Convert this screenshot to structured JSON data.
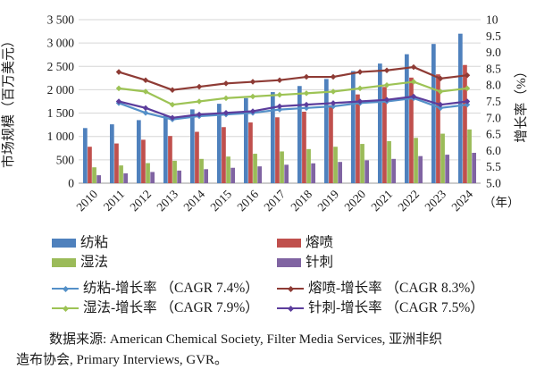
{
  "chart_data": {
    "type": "bar+line",
    "categories": [
      "2010",
      "2011",
      "2012",
      "2013",
      "2014",
      "2015",
      "2016",
      "2017",
      "2018",
      "2019",
      "2020",
      "2021",
      "2022",
      "2023",
      "2024"
    ],
    "x_axis_unit": "（年）",
    "left_axis": {
      "label": "市场规模（百万美元）",
      "min": 0,
      "max": 3500,
      "step": 500,
      "ticks": [
        "3 500",
        "3 000",
        "2 500",
        "2 000",
        "1 500",
        "1 000",
        "500",
        "0"
      ]
    },
    "right_axis": {
      "label": "增长率（%）",
      "min": 5.0,
      "max": 10.0,
      "step": 0.5,
      "ticks": [
        "10",
        "9.5",
        "9.0",
        "8.5",
        "8.0",
        "7.5",
        "7.0",
        "6.5",
        "6.0",
        "5.5",
        "5.0"
      ]
    },
    "grid": true,
    "legend_position": "bottom",
    "bar_series": [
      {
        "name": "纺粘",
        "color": "#4F81BD",
        "values": [
          1180,
          1260,
          1350,
          1450,
          1580,
          1700,
          1820,
          1950,
          2080,
          2230,
          2400,
          2560,
          2760,
          2980,
          3200
        ]
      },
      {
        "name": "熔喷",
        "color": "#C0504D",
        "values": [
          780,
          850,
          930,
          1010,
          1100,
          1200,
          1300,
          1410,
          1530,
          1670,
          1900,
          2060,
          2260,
          2330,
          2530
        ]
      },
      {
        "name": "湿法",
        "color": "#9BBB59",
        "values": [
          340,
          380,
          430,
          480,
          520,
          570,
          630,
          680,
          730,
          780,
          840,
          900,
          970,
          1060,
          1150
        ]
      },
      {
        "name": "针刺",
        "color": "#8064A2",
        "values": [
          170,
          210,
          240,
          270,
          300,
          330,
          360,
          395,
          425,
          455,
          490,
          520,
          580,
          610,
          650
        ]
      }
    ],
    "line_series": [
      {
        "name": "纺粘-增长率 （CAGR 7.4%）",
        "color": "#5490C8",
        "start_category": "2011",
        "values": [
          7.45,
          7.15,
          6.95,
          7.05,
          7.1,
          7.15,
          7.25,
          7.3,
          7.35,
          7.45,
          7.5,
          7.6,
          7.3,
          7.4
        ]
      },
      {
        "name": "熔喷-增长率 （CAGR 8.3%）",
        "color": "#8E3B35",
        "start_category": "2011",
        "values": [
          8.4,
          8.15,
          7.85,
          7.95,
          8.05,
          8.1,
          8.15,
          8.25,
          8.25,
          8.4,
          8.45,
          8.55,
          8.2,
          8.3
        ]
      },
      {
        "name": "湿法-增长率 （CAGR 7.9%）",
        "color": "#9DC355",
        "start_category": "2011",
        "values": [
          7.9,
          7.8,
          7.4,
          7.5,
          7.6,
          7.65,
          7.7,
          7.75,
          7.8,
          7.9,
          8.0,
          8.1,
          7.8,
          7.9
        ]
      },
      {
        "name": "针刺-增长率 （CAGR 7.5%）",
        "color": "#5C3D9C",
        "start_category": "2011",
        "values": [
          7.5,
          7.3,
          7.0,
          7.1,
          7.15,
          7.2,
          7.35,
          7.4,
          7.45,
          7.5,
          7.55,
          7.65,
          7.4,
          7.5
        ]
      }
    ]
  },
  "source_note": {
    "line1": "数据来源: American Chemical Society, Filter Media Services, 亚洲非织",
    "line2": "造布协会, Primary Interviews, GVR。"
  }
}
